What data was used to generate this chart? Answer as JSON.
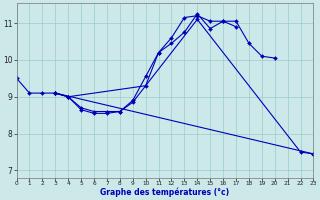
{
  "xlabel": "Graphe des températures (°c)",
  "bg_color": "#cce8e8",
  "line_color": "#0000bb",
  "grid_color": "#99cccc",
  "xlim": [
    0,
    23
  ],
  "ylim": [
    6.8,
    11.55
  ],
  "xticks": [
    0,
    1,
    2,
    3,
    4,
    5,
    6,
    7,
    8,
    9,
    10,
    11,
    12,
    13,
    14,
    15,
    16,
    17,
    18,
    19,
    20,
    21,
    22,
    23
  ],
  "yticks": [
    7,
    8,
    9,
    10,
    11
  ],
  "curves": [
    {
      "x": [
        0,
        1,
        2,
        3,
        4,
        10,
        11,
        12,
        13,
        14,
        15,
        16,
        17,
        18,
        19,
        20
      ],
      "y": [
        9.5,
        9.1,
        9.1,
        9.1,
        9.0,
        9.3,
        10.2,
        10.45,
        10.75,
        11.25,
        10.85,
        11.05,
        11.05,
        10.45,
        10.1,
        10.05
      ]
    },
    {
      "x": [
        3,
        4,
        5,
        6,
        7,
        8,
        9,
        10,
        11,
        12,
        13,
        14,
        15,
        16,
        17
      ],
      "y": [
        9.1,
        9.0,
        8.7,
        8.6,
        8.6,
        8.6,
        8.9,
        9.55,
        10.2,
        10.6,
        11.15,
        11.2,
        11.05,
        11.05,
        10.9
      ]
    },
    {
      "x": [
        3,
        4,
        5,
        6,
        7,
        8,
        9,
        14,
        22,
        23
      ],
      "y": [
        9.1,
        9.0,
        8.65,
        8.55,
        8.55,
        8.6,
        8.85,
        11.1,
        7.5,
        7.45
      ]
    },
    {
      "x": [
        3,
        23
      ],
      "y": [
        9.1,
        7.45
      ]
    }
  ]
}
